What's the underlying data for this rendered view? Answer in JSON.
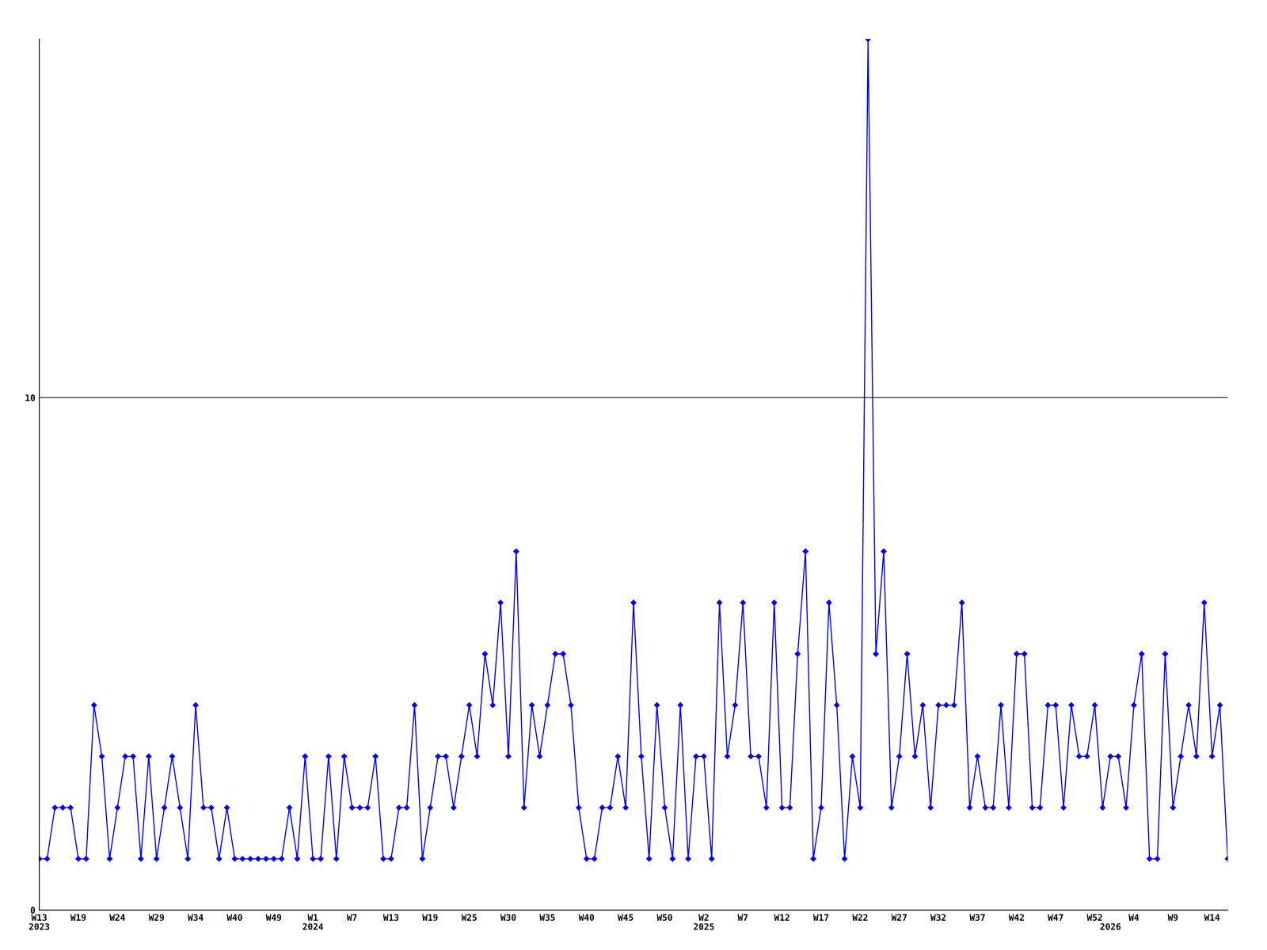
{
  "chart_data": {
    "type": "line",
    "categories": [
      "W13\n2023",
      null,
      null,
      null,
      null,
      "W19",
      null,
      null,
      null,
      null,
      "W24",
      null,
      null,
      null,
      null,
      "W29",
      null,
      null,
      null,
      null,
      "W34",
      null,
      null,
      null,
      null,
      "W40",
      null,
      null,
      null,
      null,
      "W49",
      null,
      null,
      null,
      null,
      "W1\n2024",
      null,
      null,
      null,
      null,
      "W7",
      null,
      null,
      null,
      null,
      "W13",
      null,
      null,
      null,
      null,
      "W19",
      null,
      null,
      null,
      null,
      "W25",
      null,
      null,
      null,
      null,
      "W30",
      null,
      null,
      null,
      null,
      "W35",
      null,
      null,
      null,
      null,
      "W40",
      null,
      null,
      null,
      null,
      "W45",
      null,
      null,
      null,
      null,
      "W50",
      null,
      null,
      null,
      null,
      "W2\n2025",
      null,
      null,
      null,
      null,
      "W7",
      null,
      null,
      null,
      null,
      "W12",
      null,
      null,
      null,
      null,
      "W17",
      null,
      null,
      null,
      null,
      "W22",
      null,
      null,
      null,
      null,
      "W27",
      null,
      null,
      null,
      null,
      "W32",
      null,
      null,
      null,
      null,
      "W37",
      null,
      null,
      null,
      null,
      "W42",
      null,
      null,
      null,
      null,
      "W47",
      null,
      null,
      null,
      null,
      "W52",
      null,
      "\n2026",
      null,
      null,
      "W4",
      null,
      null,
      null,
      null,
      "W9",
      null,
      null,
      null,
      null,
      "W14",
      null,
      null
    ],
    "series": [
      {
        "color": "#0000ff",
        "values": [
          1,
          1,
          2,
          2,
          2,
          1,
          1,
          4,
          3,
          1,
          2,
          3,
          3,
          1,
          3,
          1,
          2,
          3,
          2,
          1,
          4,
          2,
          2,
          1,
          2,
          1,
          1,
          1,
          1,
          1,
          1,
          1,
          2,
          1,
          3,
          1,
          1,
          3,
          1,
          3,
          2,
          2,
          2,
          3,
          1,
          1,
          2,
          2,
          4,
          1,
          2,
          3,
          3,
          2,
          3,
          4,
          3,
          5,
          4,
          6,
          3,
          7,
          2,
          4,
          3,
          4,
          5,
          5,
          4,
          2,
          1,
          1,
          2,
          2,
          3,
          2,
          6,
          3,
          1,
          4,
          2,
          1,
          4,
          1,
          3,
          3,
          1,
          6,
          3,
          4,
          6,
          3,
          3,
          2,
          6,
          2,
          2,
          5,
          7,
          1,
          2,
          6,
          4,
          1,
          3,
          2,
          17,
          5,
          7,
          2,
          3,
          5,
          3,
          4,
          2,
          4,
          4,
          4,
          6,
          2,
          3,
          2,
          2,
          4,
          2,
          5,
          5,
          2,
          2,
          4,
          4,
          2,
          4,
          3,
          3,
          4,
          2,
          3,
          3,
          2,
          4,
          5,
          1,
          1,
          5,
          2,
          3,
          4,
          3,
          6,
          3,
          4,
          1
        ]
      }
    ],
    "ylim": [
      0,
      17
    ],
    "yticks": [
      0,
      10
    ],
    "grid": "y",
    "marker": "diamond",
    "line_style": "solid"
  }
}
